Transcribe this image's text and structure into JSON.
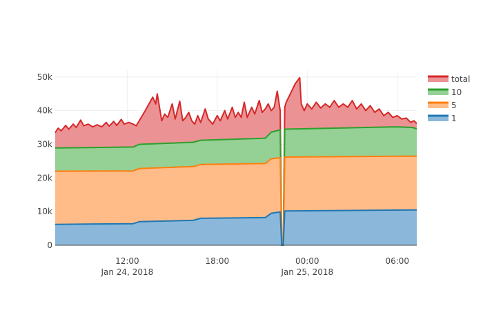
{
  "chart_data": {
    "type": "area",
    "stacked": true,
    "title": "",
    "xlabel": "",
    "ylabel": "",
    "grid": true,
    "legend_position": "right",
    "x_unit": "hours since 2018-01-24 00:00",
    "xlim": [
      7.2,
      31.3
    ],
    "ylim": [
      0,
      52000
    ],
    "y_ticks": [
      {
        "value": 0,
        "label": "0"
      },
      {
        "value": 10000,
        "label": "10k"
      },
      {
        "value": 20000,
        "label": "20k"
      },
      {
        "value": 30000,
        "label": "30k"
      },
      {
        "value": 40000,
        "label": "40k"
      },
      {
        "value": 50000,
        "label": "50k"
      }
    ],
    "x_ticks": [
      {
        "value": 12,
        "label": "12:00",
        "sublabel": "Jan 24, 2018"
      },
      {
        "value": 18,
        "label": "18:00",
        "sublabel": ""
      },
      {
        "value": 24,
        "label": "00:00",
        "sublabel": "Jan 25, 2018"
      },
      {
        "value": 30,
        "label": "06:00",
        "sublabel": ""
      }
    ],
    "series": [
      {
        "name": "1",
        "color": "#1f77b4",
        "fill": "#8bb8da",
        "points": [
          [
            7.2,
            6200
          ],
          [
            12.4,
            6400
          ],
          [
            12.8,
            7000
          ],
          [
            16.4,
            7400
          ],
          [
            16.9,
            8000
          ],
          [
            21.2,
            8200
          ],
          [
            21.6,
            9500
          ],
          [
            22.2,
            9900
          ],
          [
            22.3,
            0
          ],
          [
            22.4,
            0
          ],
          [
            22.5,
            10200
          ],
          [
            31.3,
            10500
          ]
        ]
      },
      {
        "name": "5",
        "color": "#ff7f0e",
        "fill": "#ffbb88",
        "points": [
          [
            7.2,
            22000
          ],
          [
            12.4,
            22100
          ],
          [
            12.8,
            22800
          ],
          [
            16.4,
            23400
          ],
          [
            16.9,
            24000
          ],
          [
            21.2,
            24300
          ],
          [
            21.6,
            25700
          ],
          [
            22.2,
            26000
          ],
          [
            22.3,
            0
          ],
          [
            22.4,
            0
          ],
          [
            22.5,
            26200
          ],
          [
            31.3,
            26500
          ]
        ]
      },
      {
        "name": "10",
        "color": "#2ca02c",
        "fill": "#95d095",
        "points": [
          [
            7.2,
            28900
          ],
          [
            12.4,
            29200
          ],
          [
            12.8,
            30000
          ],
          [
            16.4,
            30600
          ],
          [
            16.9,
            31200
          ],
          [
            21.2,
            31800
          ],
          [
            21.6,
            33600
          ],
          [
            22.2,
            34300
          ],
          [
            22.3,
            0
          ],
          [
            22.4,
            0
          ],
          [
            22.5,
            34500
          ],
          [
            29.9,
            35200
          ],
          [
            31.0,
            35000
          ],
          [
            31.3,
            34600
          ]
        ]
      },
      {
        "name": "total",
        "color": "#d62728",
        "fill": "#eb9294",
        "points": [
          [
            7.2,
            33500
          ],
          [
            7.4,
            34800
          ],
          [
            7.6,
            34000
          ],
          [
            7.9,
            35600
          ],
          [
            8.1,
            34500
          ],
          [
            8.4,
            36000
          ],
          [
            8.6,
            35000
          ],
          [
            8.9,
            37200
          ],
          [
            9.1,
            35500
          ],
          [
            9.4,
            36000
          ],
          [
            9.7,
            35200
          ],
          [
            10.0,
            35800
          ],
          [
            10.3,
            35200
          ],
          [
            10.6,
            36500
          ],
          [
            10.8,
            35400
          ],
          [
            11.1,
            36800
          ],
          [
            11.3,
            35600
          ],
          [
            11.6,
            37400
          ],
          [
            11.8,
            36000
          ],
          [
            12.1,
            36500
          ],
          [
            12.4,
            36000
          ],
          [
            12.6,
            35500
          ],
          [
            13.2,
            40000
          ],
          [
            13.7,
            44000
          ],
          [
            13.9,
            42000
          ],
          [
            14.0,
            45000
          ],
          [
            14.3,
            37000
          ],
          [
            14.5,
            39000
          ],
          [
            14.7,
            38000
          ],
          [
            15.0,
            42000
          ],
          [
            15.2,
            37500
          ],
          [
            15.5,
            42800
          ],
          [
            15.7,
            37000
          ],
          [
            15.9,
            38000
          ],
          [
            16.1,
            39500
          ],
          [
            16.3,
            37000
          ],
          [
            16.5,
            36000
          ],
          [
            16.7,
            38500
          ],
          [
            16.9,
            36500
          ],
          [
            17.2,
            40500
          ],
          [
            17.4,
            37500
          ],
          [
            17.7,
            36000
          ],
          [
            18.0,
            38500
          ],
          [
            18.2,
            37000
          ],
          [
            18.5,
            40000
          ],
          [
            18.7,
            37500
          ],
          [
            19.0,
            41000
          ],
          [
            19.2,
            38000
          ],
          [
            19.4,
            39500
          ],
          [
            19.6,
            38000
          ],
          [
            19.8,
            42500
          ],
          [
            20.0,
            38000
          ],
          [
            20.3,
            41000
          ],
          [
            20.5,
            39000
          ],
          [
            20.8,
            43000
          ],
          [
            21.0,
            39500
          ],
          [
            21.2,
            40500
          ],
          [
            21.4,
            42000
          ],
          [
            21.6,
            40000
          ],
          [
            21.8,
            41000
          ],
          [
            22.0,
            45800
          ],
          [
            22.2,
            40000
          ],
          [
            22.3,
            0
          ],
          [
            22.4,
            0
          ],
          [
            22.5,
            41000
          ],
          [
            22.6,
            42500
          ],
          [
            23.2,
            48000
          ],
          [
            23.5,
            49800
          ],
          [
            23.6,
            42000
          ],
          [
            23.8,
            40000
          ],
          [
            24.0,
            42000
          ],
          [
            24.3,
            40500
          ],
          [
            24.6,
            42500
          ],
          [
            24.9,
            40800
          ],
          [
            25.2,
            42000
          ],
          [
            25.5,
            41000
          ],
          [
            25.8,
            43000
          ],
          [
            26.1,
            41000
          ],
          [
            26.4,
            42000
          ],
          [
            26.7,
            41000
          ],
          [
            27.0,
            43000
          ],
          [
            27.3,
            40500
          ],
          [
            27.6,
            42000
          ],
          [
            27.9,
            40000
          ],
          [
            28.2,
            41500
          ],
          [
            28.5,
            39500
          ],
          [
            28.8,
            40500
          ],
          [
            29.1,
            38500
          ],
          [
            29.4,
            39500
          ],
          [
            29.7,
            38000
          ],
          [
            30.0,
            38500
          ],
          [
            30.3,
            37500
          ],
          [
            30.6,
            37800
          ],
          [
            30.9,
            36500
          ],
          [
            31.1,
            37000
          ],
          [
            31.3,
            36200
          ]
        ]
      }
    ]
  }
}
